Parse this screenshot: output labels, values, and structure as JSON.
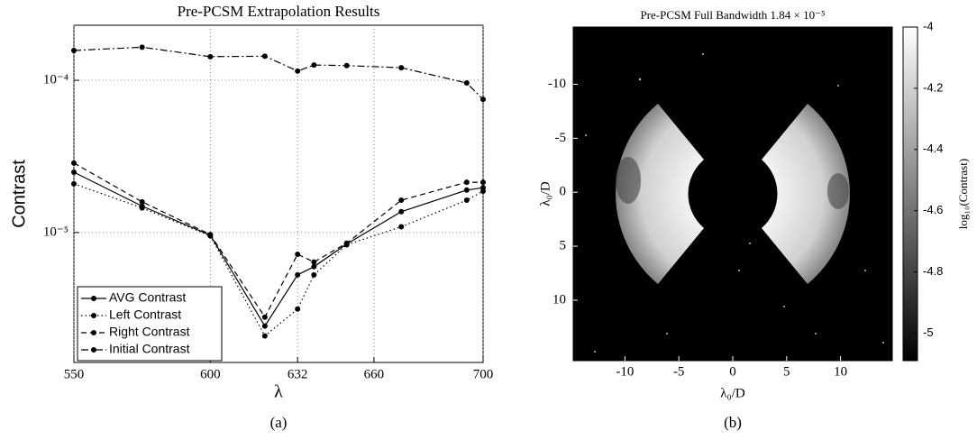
{
  "chart_data": [
    {
      "type": "line",
      "title": "Pre-PCSM Extrapolation Results",
      "x_label": "λ",
      "y_label": "Contrast",
      "caption": "(a)",
      "x": [
        550,
        575,
        600,
        620,
        632,
        638,
        650,
        670,
        694,
        700
      ],
      "series": [
        {
          "name": "AVG Contrast",
          "color": "#000000",
          "linestyle": "-",
          "values": [
            2.49e-05,
            1.49e-05,
            9.6e-06,
            2.43e-06,
            5.27e-06,
            5.96e-06,
            8.4e-06,
            1.37e-05,
            1.9e-05,
            1.97e-05
          ]
        },
        {
          "name": "Left Contrast",
          "color": "#000000",
          "linestyle": ":",
          "values": [
            2.09e-05,
            1.45e-05,
            9.5e-06,
            2.09e-06,
            3.14e-06,
            5.27e-06,
            8.3e-06,
            1.09e-05,
            1.63e-05,
            1.87e-05
          ]
        },
        {
          "name": "Right Contrast",
          "color": "#000000",
          "linestyle": "--",
          "values": [
            2.86e-05,
            1.59e-05,
            9.7e-06,
            2.78e-06,
            7.2e-06,
            6.4e-06,
            8.5e-06,
            1.63e-05,
            2.14e-05,
            2.14e-05
          ]
        },
        {
          "name": "Initial Contrast",
          "color": "#000000",
          "linestyle": "-.",
          "values": [
            0.000157,
            0.000165,
            0.000143,
            0.000144,
            0.000115,
            0.000126,
            0.000125,
            0.000121,
            9.6e-05,
            7.5e-05
          ]
        }
      ],
      "xlim": [
        550,
        700
      ],
      "xticks": [
        550,
        600,
        632,
        660,
        700
      ],
      "ylim": [
        1.4e-06,
        0.00023
      ],
      "y_scale": "log",
      "yticks": [
        {
          "value": 1e-05,
          "label": "10⁻⁵"
        },
        {
          "value": 0.0001,
          "label": "10⁻⁴"
        }
      ],
      "grid": true,
      "legend": "lower left"
    },
    {
      "type": "image",
      "title": "Pre-PCSM Full Bandwidth 1.84 × 10⁻⁵",
      "x_label": "λ₀/D",
      "y_label": "λ₀/D",
      "caption": "(b)",
      "xlim": [
        -14.8,
        14.8
      ],
      "xticks": [
        -10,
        -5,
        0,
        5,
        10
      ],
      "ylim": [
        -15.3,
        15.6
      ],
      "yticks": [
        -10,
        -5,
        0,
        5,
        10
      ],
      "colorbar": {
        "label": "log₁₀(Contrast)",
        "lim": [
          -5.09,
          -4
        ],
        "ticks": [
          -4,
          -4.2,
          -4.4,
          -4.6,
          -4.8,
          -5
        ]
      }
    }
  ]
}
